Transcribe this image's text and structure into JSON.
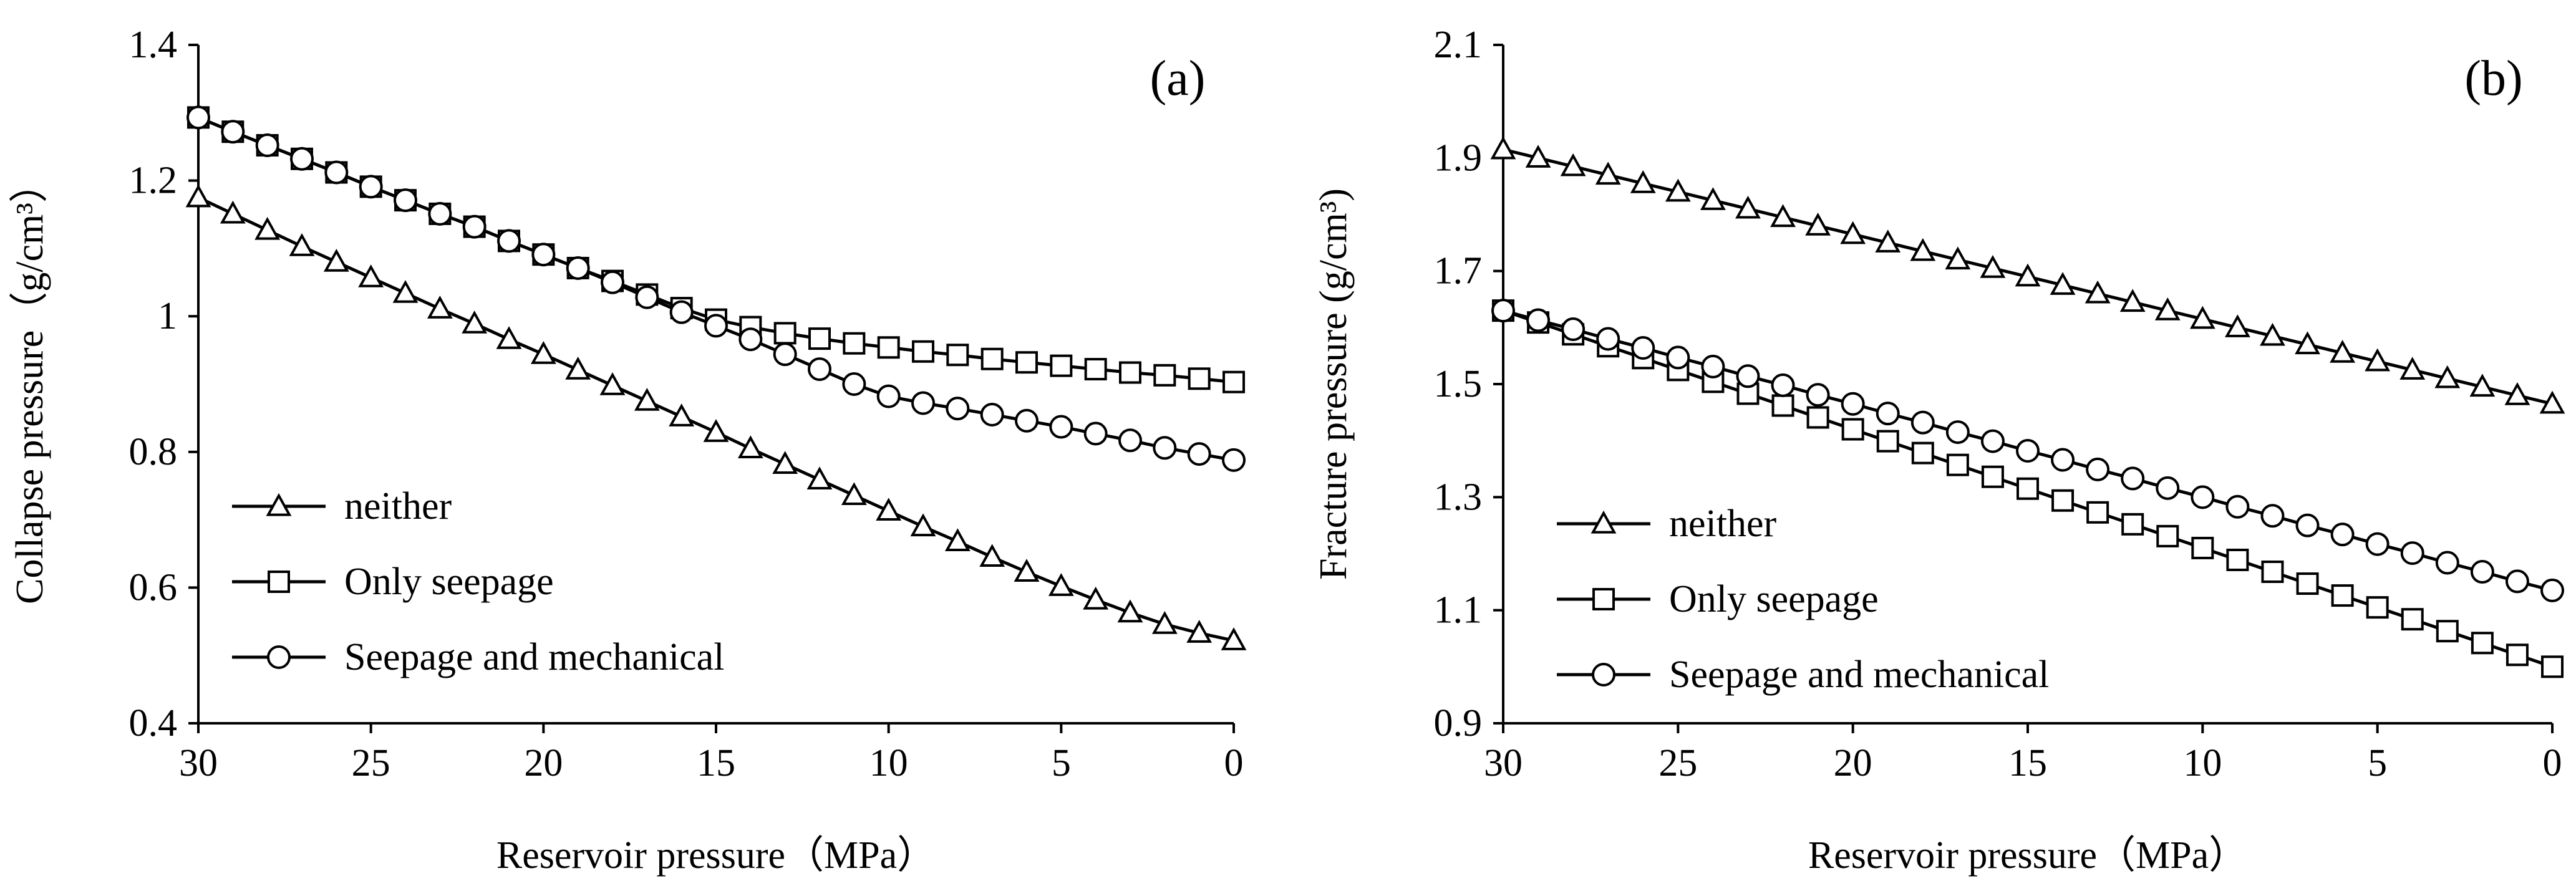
{
  "chart_data": [
    {
      "type": "line",
      "panel_label": "(a)",
      "xlabel": "Reservoir pressure（MPa）",
      "ylabel": "Collapse pressure（g/cm³）",
      "x_reversed": true,
      "xlim": [
        0,
        30
      ],
      "ylim": [
        0.4,
        1.4
      ],
      "xticks": [
        30,
        25,
        20,
        15,
        10,
        5,
        0
      ],
      "yticks": [
        0.4,
        0.6,
        0.8,
        1,
        1.2,
        1.4
      ],
      "ytick_labels": [
        "0.4",
        "0.6",
        "0.8",
        "1",
        "1.2",
        "1.4"
      ],
      "legend_position": "bottom-left",
      "x": [
        30,
        29,
        28,
        27,
        26,
        25,
        24,
        23,
        22,
        21,
        20,
        19,
        18,
        17,
        16,
        15,
        14,
        13,
        12,
        11,
        10,
        9,
        8,
        7,
        6,
        5,
        4,
        3,
        2,
        1,
        0
      ],
      "series": [
        {
          "name": "neither",
          "marker": "triangle",
          "values": [
            1.175,
            1.151,
            1.127,
            1.103,
            1.08,
            1.057,
            1.034,
            1.011,
            0.989,
            0.966,
            0.944,
            0.921,
            0.898,
            0.875,
            0.852,
            0.829,
            0.805,
            0.782,
            0.759,
            0.736,
            0.713,
            0.69,
            0.668,
            0.645,
            0.623,
            0.602,
            0.582,
            0.563,
            0.546,
            0.533,
            0.522
          ]
        },
        {
          "name": "Only seepage",
          "marker": "square",
          "values": [
            1.293,
            1.272,
            1.252,
            1.232,
            1.212,
            1.191,
            1.171,
            1.151,
            1.132,
            1.111,
            1.091,
            1.071,
            1.052,
            1.032,
            1.012,
            0.995,
            0.984,
            0.975,
            0.967,
            0.96,
            0.954,
            0.948,
            0.943,
            0.937,
            0.932,
            0.927,
            0.922,
            0.917,
            0.913,
            0.908,
            0.903
          ]
        },
        {
          "name": "Seepage and mechanical",
          "marker": "circle",
          "values": [
            1.293,
            1.272,
            1.252,
            1.232,
            1.212,
            1.191,
            1.171,
            1.151,
            1.132,
            1.111,
            1.091,
            1.071,
            1.05,
            1.028,
            1.006,
            0.986,
            0.966,
            0.944,
            0.922,
            0.9,
            0.882,
            0.872,
            0.864,
            0.855,
            0.846,
            0.837,
            0.827,
            0.817,
            0.806,
            0.797,
            0.788
          ]
        }
      ]
    },
    {
      "type": "line",
      "panel_label": "(b)",
      "xlabel": "Reservoir pressure（MPa）",
      "ylabel": "Fracture pressure (g/cm³)",
      "x_reversed": true,
      "xlim": [
        0,
        30
      ],
      "ylim": [
        0.9,
        2.1
      ],
      "xticks": [
        30,
        25,
        20,
        15,
        10,
        5,
        0
      ],
      "yticks": [
        0.9,
        1.1,
        1.3,
        1.5,
        1.7,
        1.9,
        2.1
      ],
      "ytick_labels": [
        "0.9",
        "1.1",
        "1.3",
        "1.5",
        "1.7",
        "1.9",
        "2.1"
      ],
      "legend_position": "bottom-left",
      "x": [
        30,
        29,
        28,
        27,
        26,
        25,
        24,
        23,
        22,
        21,
        20,
        19,
        18,
        17,
        16,
        15,
        14,
        13,
        12,
        11,
        10,
        9,
        8,
        7,
        6,
        5,
        4,
        3,
        2,
        1,
        0
      ],
      "series": [
        {
          "name": "neither",
          "marker": "triangle",
          "values": [
            1.915,
            1.9,
            1.885,
            1.87,
            1.855,
            1.84,
            1.825,
            1.81,
            1.795,
            1.78,
            1.765,
            1.75,
            1.735,
            1.72,
            1.705,
            1.69,
            1.675,
            1.66,
            1.645,
            1.63,
            1.615,
            1.6,
            1.585,
            1.57,
            1.555,
            1.54,
            1.525,
            1.51,
            1.495,
            1.48,
            1.465
          ]
        },
        {
          "name": "Only seepage",
          "marker": "square",
          "values": [
            1.63,
            1.609,
            1.588,
            1.567,
            1.546,
            1.525,
            1.504,
            1.483,
            1.462,
            1.441,
            1.42,
            1.399,
            1.378,
            1.357,
            1.336,
            1.315,
            1.294,
            1.273,
            1.252,
            1.231,
            1.21,
            1.189,
            1.168,
            1.147,
            1.126,
            1.105,
            1.084,
            1.063,
            1.042,
            1.021,
            1.0
          ]
        },
        {
          "name": "Seepage and mechanical",
          "marker": "circle",
          "values": [
            1.63,
            1.613,
            1.597,
            1.58,
            1.564,
            1.547,
            1.531,
            1.514,
            1.498,
            1.481,
            1.465,
            1.448,
            1.432,
            1.415,
            1.399,
            1.382,
            1.366,
            1.349,
            1.333,
            1.316,
            1.3,
            1.283,
            1.267,
            1.25,
            1.234,
            1.217,
            1.201,
            1.184,
            1.168,
            1.151,
            1.135
          ]
        }
      ]
    }
  ]
}
